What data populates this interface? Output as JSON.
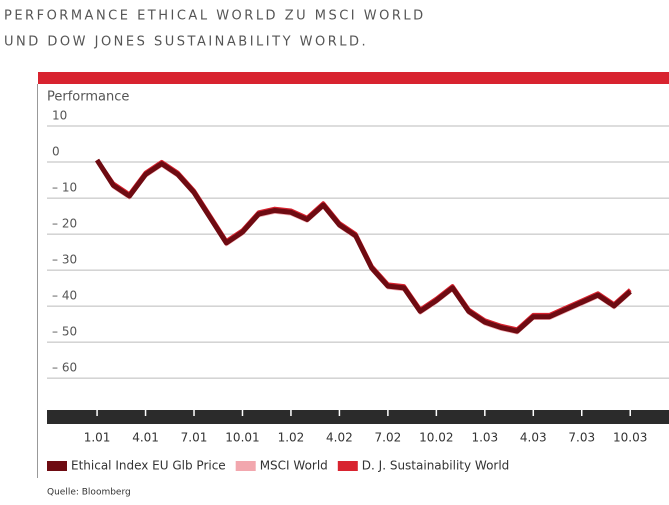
{
  "chart_data": {
    "type": "line",
    "title": "PERFORMANCE ETHICAL WORLD ZU MSCI WORLD",
    "subtitle": "UND DOW JONES SUSTAINABILITY WORLD.",
    "ylabel": "Performance",
    "source": "Quelle: Bloomberg",
    "x": [
      0,
      1,
      2,
      3,
      4,
      5,
      6,
      7,
      8,
      9,
      10,
      11,
      12,
      13,
      14,
      15,
      16,
      17,
      18,
      19,
      20,
      21,
      22,
      23,
      24,
      25,
      26,
      27,
      28,
      29,
      30,
      31,
      32,
      33
    ],
    "series": [
      {
        "name": "Ethical Index EU Glb Price",
        "color": "#6e0b12",
        "values": [
          0,
          -7,
          -10,
          -4,
          -1,
          -4,
          -9,
          -16,
          -23,
          -20,
          -15,
          -14,
          -14.5,
          -16.5,
          -12.5,
          -18,
          -21,
          -30,
          -35,
          -35.5,
          -42,
          -39,
          -35.5,
          -42,
          -45,
          -46.5,
          -47.5,
          -43.5,
          -43.5,
          -41.5,
          -39.5,
          -37.5,
          -40.5,
          -36.5
        ]
      },
      {
        "name": "MSCI World",
        "color": "#f2a7ae",
        "values": [
          0,
          -7.5,
          -10.5,
          -4.5,
          -1.5,
          -4.5,
          -9.5,
          -16.5,
          -23.5,
          -20.5,
          -15.5,
          -14.5,
          -15,
          -17,
          -13,
          -18.5,
          -21.5,
          -30.5,
          -35.5,
          -36,
          -42.5,
          -39.5,
          -36,
          -42.5,
          -45.5,
          -47,
          -48,
          -44,
          -44,
          -42,
          -40,
          -38,
          -41,
          -37
        ]
      },
      {
        "name": "D. J. Sustainability World",
        "color": "#d8232f",
        "values": [
          0,
          -6.5,
          -9.5,
          -3.5,
          -0.5,
          -3.5,
          -8.5,
          -15.5,
          -22.5,
          -19.5,
          -14.5,
          -13.5,
          -14,
          -16,
          -12,
          -17.5,
          -20.5,
          -29.5,
          -34.5,
          -35,
          -41.5,
          -38.5,
          -35,
          -41.5,
          -44.5,
          -46,
          -47,
          -43,
          -43,
          -41,
          -39,
          -37,
          -40,
          -36
        ]
      }
    ],
    "xlim": [
      -3.1,
      35.4
    ],
    "xticks": [
      {
        "value": 0,
        "label": "1.01"
      },
      {
        "value": 3,
        "label": "4.01"
      },
      {
        "value": 6,
        "label": "7.01"
      },
      {
        "value": 9,
        "label": "10.01"
      },
      {
        "value": 12,
        "label": "1.02"
      },
      {
        "value": 15,
        "label": "4.02"
      },
      {
        "value": 18,
        "label": "7.02"
      },
      {
        "value": 21,
        "label": "10.02"
      },
      {
        "value": 24,
        "label": "1.03"
      },
      {
        "value": 27,
        "label": "4.03"
      },
      {
        "value": 30,
        "label": "7.03"
      },
      {
        "value": 33,
        "label": "10.03"
      }
    ],
    "ylim": [
      -69.4,
      13.9
    ],
    "yticks": [
      10,
      0,
      {
        "value": -10,
        "label": "– 10"
      },
      {
        "value": -20,
        "label": "– 20"
      },
      {
        "value": -30,
        "label": "– 30"
      },
      {
        "value": -40,
        "label": "– 40"
      },
      {
        "value": -50,
        "label": "– 50"
      },
      {
        "value": -60,
        "label": "– 60"
      }
    ],
    "grid": true
  }
}
